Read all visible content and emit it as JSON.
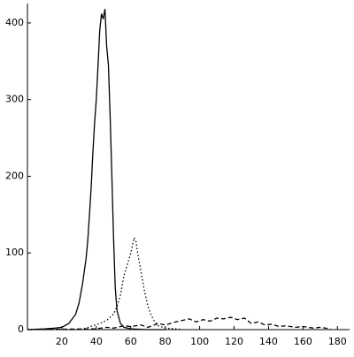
{
  "chart_data": {
    "type": "line",
    "xlim": [
      0,
      185
    ],
    "ylim": [
      0,
      420
    ],
    "xticks": [
      20,
      40,
      60,
      80,
      100,
      120,
      140,
      160,
      180
    ],
    "yticks": [
      0,
      100,
      200,
      300,
      400
    ],
    "series": [
      {
        "color": "#000000",
        "dash": "solid",
        "x": [
          0,
          10,
          16,
          20,
          24,
          28,
          30,
          32,
          34,
          35,
          36,
          37,
          38,
          39,
          40,
          41,
          42,
          43,
          44,
          45,
          46,
          47,
          48,
          49,
          50,
          51,
          52,
          54,
          56,
          60,
          70,
          80
        ],
        "values": [
          0,
          1,
          2,
          3,
          8,
          20,
          35,
          60,
          92,
          115,
          150,
          185,
          230,
          270,
          300,
          345,
          390,
          412,
          405,
          418,
          370,
          345,
          280,
          200,
          120,
          55,
          25,
          8,
          3,
          1,
          0,
          0
        ]
      },
      {
        "color": "#000000",
        "dash": "dot",
        "x": [
          0,
          30,
          34,
          38,
          42,
          46,
          50,
          52,
          54,
          56,
          58,
          60,
          61,
          62,
          63,
          64,
          66,
          68,
          70,
          72,
          74,
          76,
          80,
          86,
          90
        ],
        "values": [
          0,
          0,
          2,
          5,
          8,
          12,
          20,
          30,
          45,
          70,
          85,
          100,
          110,
          120,
          115,
          100,
          75,
          50,
          30,
          18,
          10,
          5,
          2,
          1,
          0
        ]
      },
      {
        "color": "#000000",
        "dash": "dash",
        "x": [
          0,
          40,
          46,
          50,
          56,
          60,
          66,
          70,
          76,
          80,
          86,
          90,
          94,
          98,
          102,
          106,
          110,
          114,
          118,
          122,
          126,
          130,
          134,
          138,
          142,
          146,
          150,
          156,
          160,
          166,
          170,
          176
        ],
        "values": [
          0,
          1,
          3,
          2,
          5,
          4,
          6,
          3,
          8,
          6,
          10,
          12,
          14,
          10,
          13,
          11,
          15,
          14,
          16,
          13,
          15,
          8,
          10,
          6,
          7,
          4,
          5,
          3,
          4,
          2,
          3,
          1
        ]
      }
    ]
  }
}
